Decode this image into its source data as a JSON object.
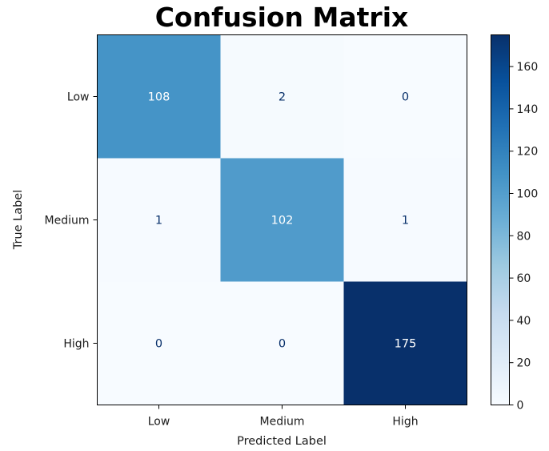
{
  "chart_data": {
    "type": "heatmap",
    "title": "Confusion Matrix",
    "xlabel": "Predicted Label",
    "ylabel": "True Label",
    "x_categories": [
      "Low",
      "Medium",
      "High"
    ],
    "y_categories": [
      "Low",
      "Medium",
      "High"
    ],
    "values": [
      [
        108,
        2,
        0
      ],
      [
        1,
        102,
        1
      ],
      [
        0,
        0,
        175
      ]
    ],
    "colormap": "Blues",
    "colorbar": {
      "min": 0,
      "max": 175,
      "ticks": [
        "0",
        "20",
        "40",
        "60",
        "80",
        "100",
        "120",
        "140",
        "160"
      ]
    },
    "cell_labels": [
      [
        "108",
        "2",
        "0"
      ],
      [
        "1",
        "102",
        "1"
      ],
      [
        "0",
        "0",
        "175"
      ]
    ]
  }
}
